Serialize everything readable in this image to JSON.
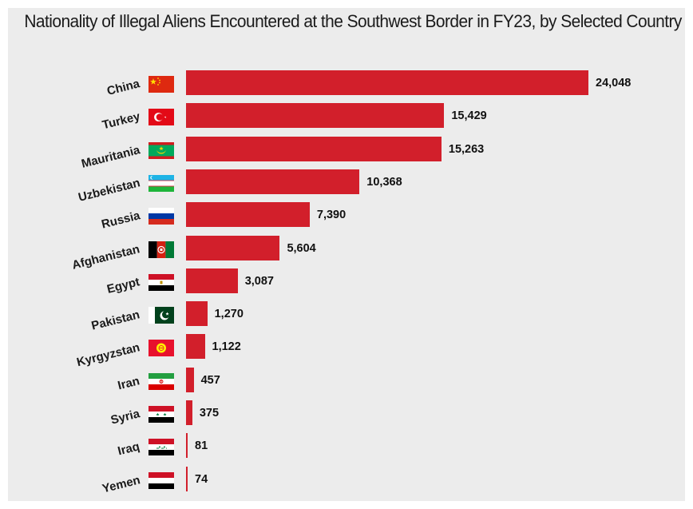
{
  "title": "Nationality of Illegal Aliens Encountered at the Southwest Border in FY23, by Selected Country",
  "bar_color": "#d21f2b",
  "chart_data": {
    "type": "bar",
    "orientation": "horizontal",
    "title": "Nationality of Illegal Aliens Encountered at the Southwest Border in FY23, by Selected Country",
    "categories": [
      "China",
      "Turkey",
      "Mauritania",
      "Uzbekistan",
      "Russia",
      "Afghanistan",
      "Egypt",
      "Pakistan",
      "Kyrgyzstan",
      "Iran",
      "Syria",
      "Iraq",
      "Yemen"
    ],
    "values": [
      24048,
      15429,
      15263,
      10368,
      7390,
      5604,
      3087,
      1270,
      1122,
      457,
      375,
      81,
      74
    ],
    "value_labels": [
      "24,048",
      "15,429",
      "15,263",
      "10,368",
      "7,390",
      "5,604",
      "3,087",
      "1,270",
      "1,122",
      "457",
      "375",
      "81",
      "74"
    ],
    "flag_icons": [
      "china-flag-icon",
      "turkey-flag-icon",
      "mauritania-flag-icon",
      "uzbekistan-flag-icon",
      "russia-flag-icon",
      "afghanistan-flag-icon",
      "egypt-flag-icon",
      "pakistan-flag-icon",
      "kyrgyzstan-flag-icon",
      "iran-flag-icon",
      "syria-flag-icon",
      "iraq-flag-icon",
      "yemen-flag-icon"
    ],
    "xlim": [
      0,
      24048
    ],
    "grid": false,
    "legend": "none"
  }
}
